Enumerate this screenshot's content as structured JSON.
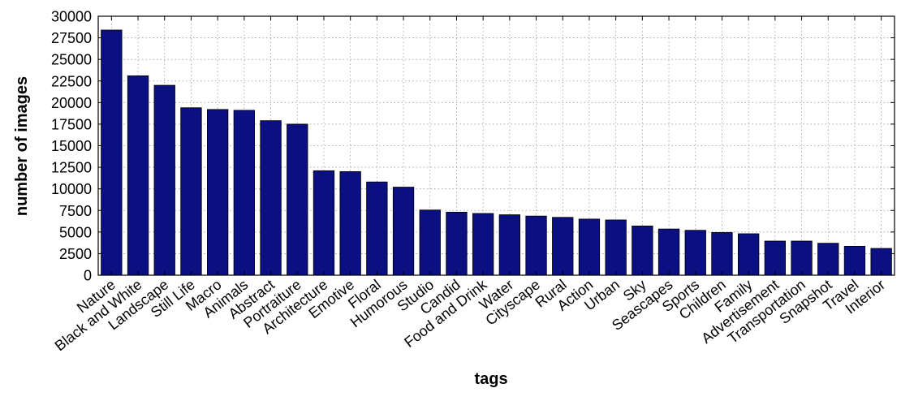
{
  "chart_data": {
    "type": "bar",
    "title": "",
    "xlabel": "tags",
    "ylabel": "number of images",
    "ylim": [
      0,
      30000
    ],
    "yticks": [
      0,
      2500,
      5000,
      7500,
      10000,
      12500,
      15000,
      17500,
      20000,
      22500,
      25000,
      27500,
      30000
    ],
    "grid": true,
    "bar_color": "#0a0f82",
    "categories": [
      "Nature",
      "Black and White",
      "Landscape",
      "Still Life",
      "Macro",
      "Animals",
      "Abstract",
      "Portraiture",
      "Architecture",
      "Emotive",
      "Floral",
      "Humorous",
      "Studio",
      "Candid",
      "Food and Drink",
      "Water",
      "Cityscape",
      "Rural",
      "Action",
      "Urban",
      "Sky",
      "Seascapes",
      "Sports",
      "Children",
      "Family",
      "Advertisement",
      "Transportation",
      "Snapshot",
      "Travel",
      "Interior"
    ],
    "values": [
      28400,
      23100,
      22000,
      19400,
      19200,
      19100,
      17900,
      17500,
      12100,
      12000,
      10800,
      10200,
      7550,
      7300,
      7150,
      7000,
      6850,
      6700,
      6500,
      6400,
      5700,
      5350,
      5200,
      4950,
      4800,
      3950,
      3950,
      3700,
      3350,
      3100
    ]
  }
}
